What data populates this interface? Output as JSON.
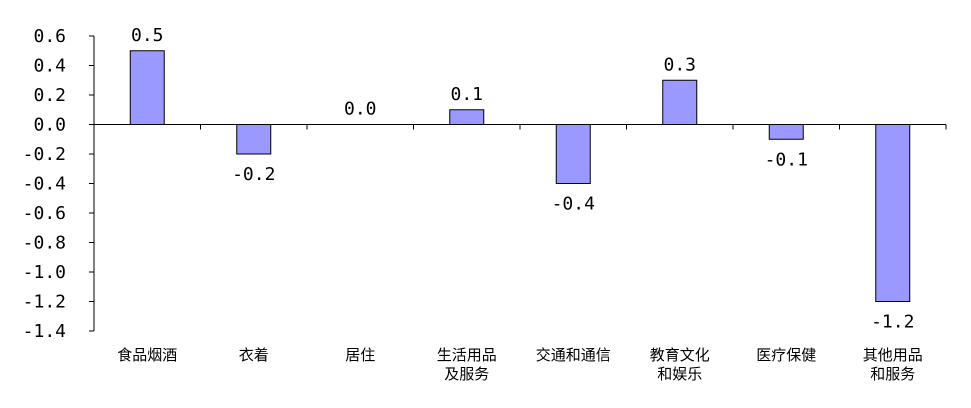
{
  "chart_data": {
    "type": "bar",
    "categories": [
      [
        "食品烟酒"
      ],
      [
        "衣着"
      ],
      [
        "居住"
      ],
      [
        "生活用品",
        "及服务"
      ],
      [
        "交通和通信"
      ],
      [
        "教育文化",
        "和娱乐"
      ],
      [
        "医疗保健"
      ],
      [
        "其他用品",
        "和服务"
      ]
    ],
    "values": [
      0.5,
      -0.2,
      0.0,
      0.1,
      -0.4,
      0.3,
      -0.1,
      -1.2
    ],
    "value_labels": [
      "0.5",
      "-0.2",
      "0.0",
      "0.1",
      "-0.4",
      "0.3",
      "-0.1",
      "-1.2"
    ],
    "yticks": [
      0.6,
      0.4,
      0.2,
      0.0,
      -0.2,
      -0.4,
      -0.6,
      -0.8,
      -1.0,
      -1.2,
      -1.4
    ],
    "ytick_labels": [
      "0.6",
      "0.4",
      "0.2",
      "0.0",
      "-0.2",
      "-0.4",
      "-0.6",
      "-0.8",
      "-1.0",
      "-1.2",
      "-1.4"
    ],
    "ylim": [
      -1.4,
      0.6
    ],
    "title": "",
    "xlabel": "",
    "ylabel": "",
    "grid": false,
    "legend": "none",
    "bar_color": "#9999ff",
    "bar_stroke": "#000000",
    "axis_color": "#000000"
  }
}
